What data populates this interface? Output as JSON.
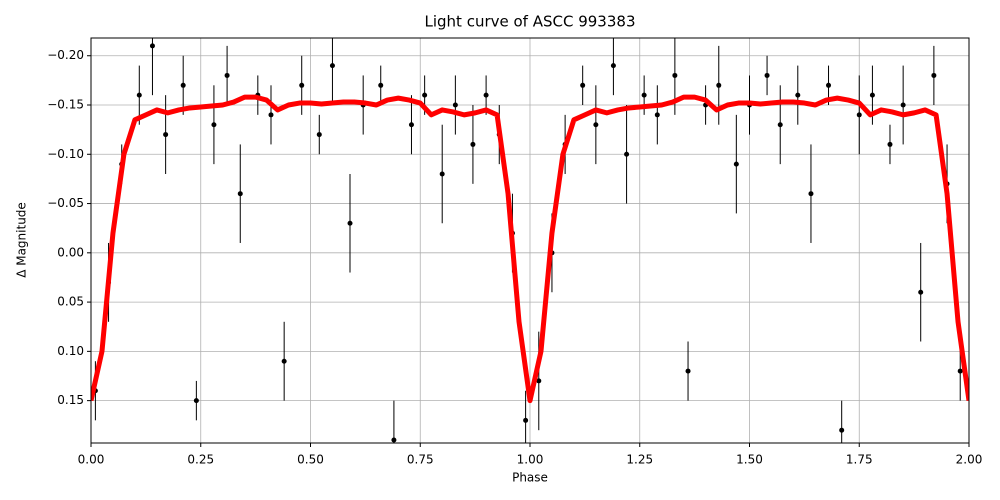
{
  "chart_data": {
    "type": "scatter",
    "title": "Light curve of ASCC 993383",
    "x_label": "Phase",
    "y_label": "Δ Magnitude",
    "xlim": [
      0,
      2
    ],
    "ylim": [
      0.193,
      -0.218
    ],
    "xticks": [
      {
        "value": 0,
        "label": "0.00"
      },
      0.25,
      {
        "value": 0.5,
        "label": "0.50"
      },
      0.75,
      {
        "value": 1,
        "label": "1.00"
      },
      1.25,
      {
        "value": 1.5,
        "label": "1.50"
      },
      1.75,
      {
        "value": 2,
        "label": "2.00"
      }
    ],
    "yticks": [
      {
        "value": -0.2,
        "label": "−0.20"
      },
      {
        "value": -0.15,
        "label": "−0.15"
      },
      {
        "value": -0.1,
        "label": "−0.10"
      },
      {
        "value": -0.05,
        "label": "−0.05"
      },
      {
        "value": 0,
        "label": "0.00"
      },
      0.05,
      {
        "value": 0.1,
        "label": "0.10"
      },
      0.15
    ],
    "grid": true,
    "series": [
      {
        "kind": "points",
        "color": "#000000",
        "x": [
          0.01,
          0.04,
          0.07,
          0.11,
          0.14,
          0.17,
          0.21,
          0.24,
          0.28,
          0.31,
          0.34,
          0.38,
          0.41,
          0.44,
          0.48,
          0.52,
          0.55,
          0.59,
          0.62,
          0.66,
          0.69,
          0.73,
          0.76,
          0.8,
          0.83,
          0.87,
          0.9,
          0.93,
          0.96,
          0.99,
          1.02,
          1.05,
          1.08,
          1.12,
          1.15,
          1.19,
          1.22,
          1.26,
          1.29,
          1.33,
          1.36,
          1.4,
          1.43,
          1.47,
          1.5,
          1.54,
          1.57,
          1.61,
          1.64,
          1.68,
          1.71,
          1.75,
          1.78,
          1.82,
          1.85,
          1.89,
          1.92,
          1.95,
          1.98
        ],
        "values": [
          0.14,
          0.03,
          -0.09,
          -0.16,
          -0.21,
          -0.12,
          -0.17,
          0.15,
          -0.13,
          -0.18,
          -0.06,
          -0.16,
          -0.14,
          0.11,
          -0.17,
          -0.12,
          -0.19,
          -0.03,
          -0.15,
          -0.17,
          0.19,
          -0.13,
          -0.16,
          -0.08,
          -0.15,
          -0.11,
          -0.16,
          -0.12,
          -0.02,
          0.17,
          0.13,
          0.0,
          -0.11,
          -0.17,
          -0.13,
          -0.19,
          -0.1,
          -0.16,
          -0.14,
          -0.18,
          0.12,
          -0.15,
          -0.17,
          -0.09,
          -0.15,
          -0.18,
          -0.13,
          -0.16,
          -0.06,
          -0.17,
          0.18,
          -0.14,
          -0.16,
          -0.11,
          -0.15,
          0.04,
          -0.18,
          -0.07,
          0.12
        ],
        "errors": [
          0.03,
          0.04,
          0.02,
          0.03,
          0.05,
          0.04,
          0.03,
          0.02,
          0.04,
          0.03,
          0.05,
          0.02,
          0.03,
          0.04,
          0.03,
          0.02,
          0.04,
          0.05,
          0.03,
          0.02,
          0.04,
          0.03,
          0.02,
          0.05,
          0.03,
          0.04,
          0.02,
          0.03,
          0.04,
          0.03,
          0.05,
          0.04,
          0.03,
          0.02,
          0.04,
          0.03,
          0.05,
          0.02,
          0.03,
          0.04,
          0.03,
          0.02,
          0.04,
          0.05,
          0.03,
          0.02,
          0.04,
          0.03,
          0.05,
          0.02,
          0.03,
          0.04,
          0.03,
          0.02,
          0.04,
          0.05,
          0.03,
          0.04,
          0.03
        ]
      },
      {
        "kind": "line",
        "color": "#ff0000",
        "x": [
          0,
          0.025,
          0.05,
          0.075,
          0.1,
          0.125,
          0.15,
          0.175,
          0.2,
          0.225,
          0.25,
          0.275,
          0.3,
          0.325,
          0.35,
          0.375,
          0.4,
          0.425,
          0.45,
          0.475,
          0.5,
          0.525,
          0.55,
          0.575,
          0.6,
          0.625,
          0.65,
          0.675,
          0.7,
          0.725,
          0.75,
          0.775,
          0.8,
          0.825,
          0.85,
          0.875,
          0.9,
          0.925,
          0.95,
          0.975,
          1,
          1.025,
          1.05,
          1.075,
          1.1,
          1.125,
          1.15,
          1.175,
          1.2,
          1.225,
          1.25,
          1.275,
          1.3,
          1.325,
          1.35,
          1.375,
          1.4,
          1.425,
          1.45,
          1.475,
          1.5,
          1.525,
          1.55,
          1.575,
          1.6,
          1.625,
          1.65,
          1.675,
          1.7,
          1.725,
          1.75,
          1.775,
          1.8,
          1.825,
          1.85,
          1.875,
          1.9,
          1.925,
          1.95,
          1.975,
          2
        ],
        "values": [
          0.15,
          0.1,
          -0.02,
          -0.1,
          -0.135,
          -0.14,
          -0.145,
          -0.142,
          -0.145,
          -0.147,
          -0.148,
          -0.149,
          -0.15,
          -0.153,
          -0.158,
          -0.158,
          -0.155,
          -0.145,
          -0.15,
          -0.152,
          -0.152,
          -0.151,
          -0.152,
          -0.153,
          -0.153,
          -0.152,
          -0.15,
          -0.155,
          -0.157,
          -0.155,
          -0.152,
          -0.14,
          -0.145,
          -0.143,
          -0.14,
          -0.142,
          -0.145,
          -0.14,
          -0.06,
          0.07,
          0.15,
          0.1,
          -0.02,
          -0.1,
          -0.135,
          -0.14,
          -0.145,
          -0.142,
          -0.145,
          -0.147,
          -0.148,
          -0.149,
          -0.15,
          -0.153,
          -0.158,
          -0.158,
          -0.155,
          -0.145,
          -0.15,
          -0.152,
          -0.152,
          -0.151,
          -0.152,
          -0.153,
          -0.153,
          -0.152,
          -0.15,
          -0.155,
          -0.157,
          -0.155,
          -0.152,
          -0.14,
          -0.145,
          -0.143,
          -0.14,
          -0.142,
          -0.145,
          -0.14,
          -0.06,
          0.07,
          0.15
        ]
      }
    ]
  }
}
